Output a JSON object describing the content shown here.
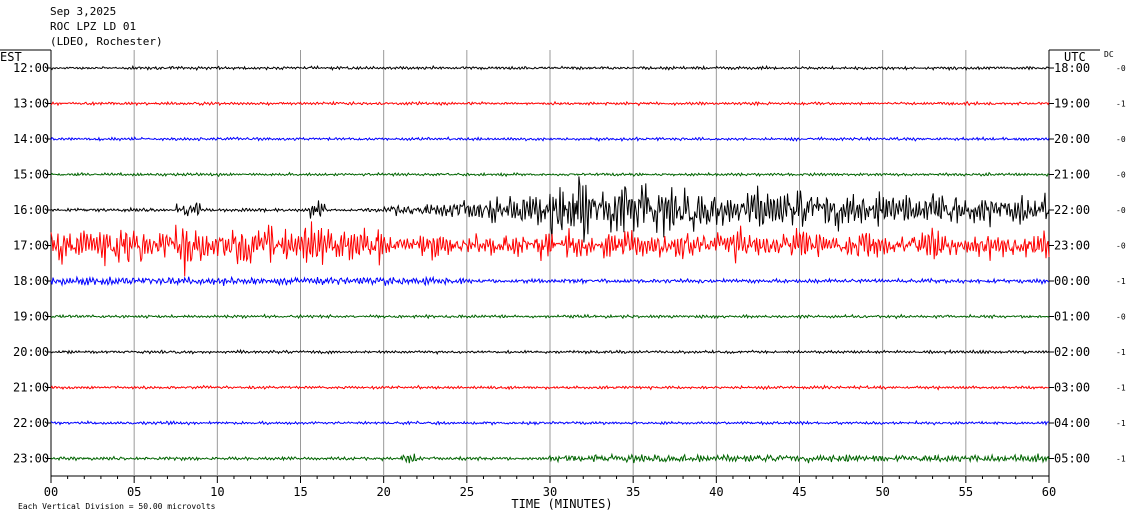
{
  "header": {
    "date": "Sep 3,2025",
    "station": "ROC LPZ LD 01",
    "network": "(LDEO, Rochester)"
  },
  "chart_data": {
    "type": "line",
    "title": "Sep 3,2025",
    "left_axis_label": "EST",
    "right_axis_label": "UTC",
    "dc_label": "DC",
    "xlabel": "TIME (MINUTES)",
    "xlim": [
      0,
      60
    ],
    "x_ticks": [
      "00",
      "05",
      "10",
      "15",
      "20",
      "25",
      "30",
      "35",
      "40",
      "45",
      "50",
      "55",
      "60"
    ],
    "rows": [
      {
        "est": "12:00",
        "utc": "18:00",
        "dc": "-0",
        "color": "#000000",
        "activity": "quiet"
      },
      {
        "est": "13:00",
        "utc": "19:00",
        "dc": "-1",
        "color": "#ff0000",
        "activity": "quiet"
      },
      {
        "est": "14:00",
        "utc": "20:00",
        "dc": "-0",
        "color": "#0000ff",
        "activity": "quiet"
      },
      {
        "est": "15:00",
        "utc": "21:00",
        "dc": "-0",
        "color": "#006400",
        "activity": "quiet"
      },
      {
        "est": "16:00",
        "utc": "22:00",
        "dc": "-0",
        "color": "#000000",
        "activity": "earthquake"
      },
      {
        "est": "17:00",
        "utc": "23:00",
        "dc": "-0",
        "color": "#ff0000",
        "activity": "noisy"
      },
      {
        "est": "18:00",
        "utc": "00:00",
        "dc": "-1",
        "color": "#0000ff",
        "activity": "moderate"
      },
      {
        "est": "19:00",
        "utc": "01:00",
        "dc": "-0",
        "color": "#006400",
        "activity": "quiet"
      },
      {
        "est": "20:00",
        "utc": "02:00",
        "dc": "-1",
        "color": "#000000",
        "activity": "quiet"
      },
      {
        "est": "21:00",
        "utc": "03:00",
        "dc": "-1",
        "color": "#ff0000",
        "activity": "quiet"
      },
      {
        "est": "22:00",
        "utc": "04:00",
        "dc": "-1",
        "color": "#0000ff",
        "activity": "quiet"
      },
      {
        "est": "23:00",
        "utc": "05:00",
        "dc": "-1",
        "color": "#006400",
        "activity": "late-noise"
      }
    ],
    "footer_note": "Each Vertical Division =   50.00 microvolts"
  }
}
